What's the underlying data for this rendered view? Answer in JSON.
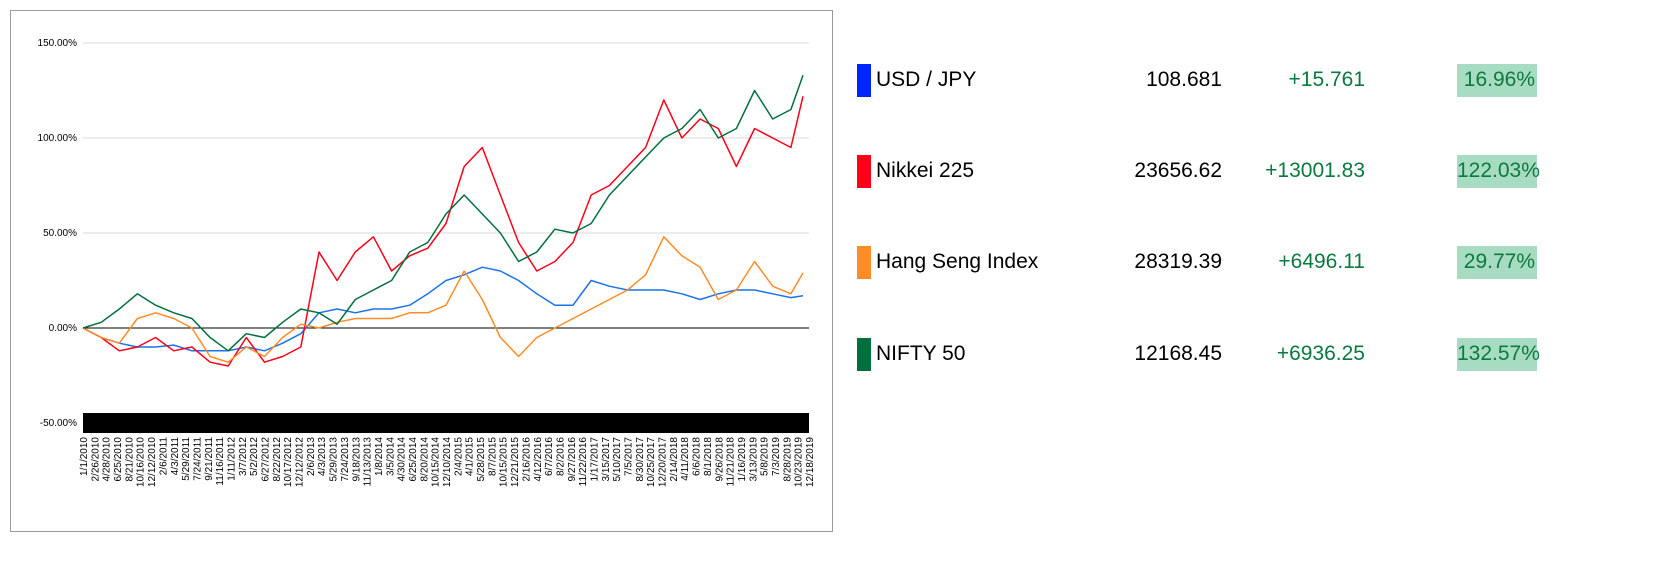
{
  "chart_data": {
    "type": "line",
    "ylim": [
      -50,
      150
    ],
    "yticks": [
      "150.00%",
      "100.00%",
      "50.00%",
      "0.00%",
      "-50.00%"
    ],
    "ytick_values": [
      150,
      100,
      50,
      0,
      -50
    ],
    "grid": true,
    "legend_placement": "right",
    "xticks": [
      "1/1/2010",
      "2/26/2010",
      "4/28/2010",
      "6/25/2010",
      "8/21/2010",
      "10/16/2010",
      "12/12/2010",
      "2/6/2011",
      "4/3/2011",
      "5/29/2011",
      "7/24/2011",
      "9/21/2011",
      "11/16/2011",
      "1/11/2012",
      "3/7/2012",
      "5/2/2012",
      "6/27/2012",
      "8/22/2012",
      "10/17/2012",
      "12/12/2012",
      "2/6/2013",
      "4/3/2013",
      "5/29/2013",
      "7/24/2013",
      "9/18/2013",
      "11/13/2013",
      "1/8/2014",
      "3/5/2014",
      "4/30/2014",
      "6/25/2014",
      "8/20/2014",
      "10/15/2014",
      "12/10/2014",
      "2/4/2015",
      "4/1/2015",
      "5/28/2015",
      "8/7/2015",
      "10/15/2015",
      "12/21/2015",
      "2/16/2016",
      "4/12/2016",
      "6/7/2016",
      "8/2/2016",
      "9/27/2016",
      "11/22/2016",
      "1/17/2017",
      "3/15/2017",
      "5/10/2017",
      "7/5/2017",
      "8/30/2017",
      "10/25/2017",
      "12/20/2017",
      "2/14/2018",
      "4/11/2018",
      "6/6/2018",
      "8/1/2018",
      "9/26/2018",
      "11/21/2018",
      "1/16/2019",
      "3/13/2019",
      "5/8/2019",
      "7/3/2019",
      "8/28/2019",
      "10/23/2019",
      "12/18/2019"
    ],
    "x": [
      "2010-01",
      "2010-04",
      "2010-07",
      "2010-10",
      "2011-01",
      "2011-04",
      "2011-07",
      "2011-10",
      "2012-01",
      "2012-04",
      "2012-07",
      "2012-10",
      "2013-01",
      "2013-04",
      "2013-07",
      "2013-10",
      "2014-01",
      "2014-04",
      "2014-07",
      "2014-10",
      "2015-01",
      "2015-04",
      "2015-07",
      "2015-10",
      "2016-01",
      "2016-04",
      "2016-07",
      "2016-10",
      "2017-01",
      "2017-04",
      "2017-07",
      "2017-10",
      "2018-01",
      "2018-04",
      "2018-07",
      "2018-10",
      "2019-01",
      "2019-04",
      "2019-07",
      "2019-10",
      "2019-12"
    ],
    "series": [
      {
        "name": "USD / JPY",
        "color": "#1a73e8",
        "values": [
          0,
          -5,
          -8,
          -10,
          -10,
          -9,
          -12,
          -12,
          -12,
          -10,
          -12,
          -8,
          -3,
          8,
          10,
          8,
          10,
          10,
          12,
          18,
          25,
          28,
          32,
          30,
          25,
          18,
          12,
          12,
          25,
          22,
          20,
          20,
          20,
          18,
          15,
          18,
          20,
          20,
          18,
          16,
          17
        ]
      },
      {
        "name": "Nikkei 225",
        "color": "#ff0018",
        "values": [
          0,
          -5,
          -12,
          -10,
          -5,
          -12,
          -10,
          -18,
          -20,
          -5,
          -18,
          -15,
          -10,
          40,
          25,
          40,
          48,
          30,
          38,
          42,
          55,
          85,
          95,
          70,
          45,
          30,
          35,
          45,
          70,
          75,
          85,
          95,
          120,
          100,
          110,
          105,
          85,
          105,
          100,
          95,
          122
        ]
      },
      {
        "name": "Hang Seng Index",
        "color": "#ff8c26",
        "values": [
          0,
          -5,
          -8,
          5,
          8,
          5,
          0,
          -15,
          -18,
          -10,
          -15,
          -5,
          2,
          0,
          3,
          5,
          5,
          5,
          8,
          8,
          12,
          30,
          15,
          -5,
          -15,
          -5,
          0,
          5,
          10,
          15,
          20,
          28,
          48,
          38,
          32,
          15,
          20,
          35,
          22,
          18,
          29
        ]
      },
      {
        "name": "NIFTY 50",
        "color": "#00703c",
        "values": [
          0,
          3,
          10,
          18,
          12,
          8,
          5,
          -5,
          -12,
          -3,
          -5,
          3,
          10,
          8,
          2,
          15,
          20,
          25,
          40,
          45,
          60,
          70,
          60,
          50,
          35,
          40,
          52,
          50,
          55,
          70,
          80,
          90,
          100,
          105,
          115,
          100,
          105,
          125,
          110,
          115,
          133
        ]
      }
    ]
  },
  "legend": [
    {
      "name": "USD / JPY",
      "marker_color": "#0026ff",
      "value": "108.681",
      "change": "+15.761",
      "percent": "16.96%"
    },
    {
      "name": "Nikkei 225",
      "marker_color": "#ff0018",
      "value": "23656.62",
      "change": "+13001.83",
      "percent": "122.03%"
    },
    {
      "name": "Hang Seng Index",
      "marker_color": "#ff8c26",
      "value": "28319.39",
      "change": "+6496.11",
      "percent": "29.77%"
    },
    {
      "name": "NIFTY 50",
      "marker_color": "#00703c",
      "value": "12168.45",
      "change": "+6936.25",
      "percent": "132.57%"
    }
  ]
}
